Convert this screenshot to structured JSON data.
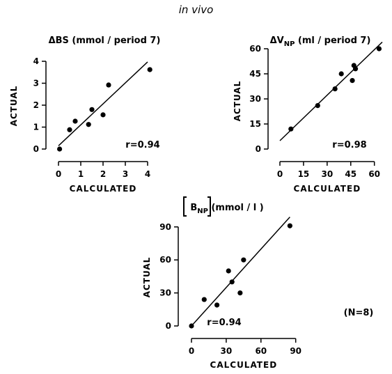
{
  "figure": {
    "header": "in vivo",
    "n_label": "(N=8)"
  },
  "chart_data": [
    {
      "type": "scatter",
      "title": "ΔBS (mmol/period 7)",
      "title_parts": {
        "main": "ΔBS (mmol / period 7)"
      },
      "xlabel": "CALCULATED",
      "ylabel": "ACTUAL",
      "xlim": [
        0,
        4.5
      ],
      "ylim": [
        0,
        4
      ],
      "xticks": [
        0,
        1,
        2,
        3,
        4
      ],
      "yticks": [
        0,
        1,
        2,
        3,
        4
      ],
      "points": [
        {
          "x": 0.05,
          "y": 0.0
        },
        {
          "x": 0.5,
          "y": 0.88
        },
        {
          "x": 0.75,
          "y": 1.27
        },
        {
          "x": 1.35,
          "y": 1.12
        },
        {
          "x": 1.5,
          "y": 1.8
        },
        {
          "x": 2.0,
          "y": 1.56
        },
        {
          "x": 2.25,
          "y": 2.92
        },
        {
          "x": 4.1,
          "y": 3.62
        }
      ],
      "regression": {
        "x": [
          0,
          4
        ],
        "y": [
          0.15,
          3.97
        ]
      },
      "annotation": "r=0.94"
    },
    {
      "type": "scatter",
      "title": "ΔVNP (ml/period 7)",
      "title_parts": {
        "prefix": "ΔV",
        "subscript": "NP",
        "suffix": " (ml / period 7)"
      },
      "xlabel": "CALCULATED",
      "ylabel": "ACTUAL",
      "xlim": [
        0,
        65
      ],
      "ylim": [
        0,
        65
      ],
      "xticks": [
        0,
        15,
        30,
        45,
        60
      ],
      "yticks": [
        0,
        15,
        30,
        45,
        60
      ],
      "points": [
        {
          "x": 7,
          "y": 12
        },
        {
          "x": 24,
          "y": 26
        },
        {
          "x": 35,
          "y": 36
        },
        {
          "x": 39,
          "y": 45
        },
        {
          "x": 46,
          "y": 41
        },
        {
          "x": 47,
          "y": 50
        },
        {
          "x": 48,
          "y": 48
        },
        {
          "x": 63,
          "y": 60
        }
      ],
      "regression": {
        "x": [
          0,
          65
        ],
        "y": [
          5,
          64
        ]
      },
      "annotation": "r=0.98"
    },
    {
      "type": "scatter",
      "title": "[BNP] (mmol/l)",
      "title_parts": {
        "prefix": "B",
        "subscript": "NP",
        "suffix": " (mmol / l )"
      },
      "xlabel": "CALCULATED",
      "ylabel": "ACTUAL",
      "xlim": [
        0,
        95
      ],
      "ylim": [
        0,
        100
      ],
      "xticks": [
        0,
        30,
        60,
        90
      ],
      "yticks": [
        0,
        30,
        60,
        90
      ],
      "points": [
        {
          "x": 0,
          "y": 0
        },
        {
          "x": 11,
          "y": 24
        },
        {
          "x": 22,
          "y": 19
        },
        {
          "x": 32,
          "y": 50
        },
        {
          "x": 35,
          "y": 40
        },
        {
          "x": 42,
          "y": 30
        },
        {
          "x": 45,
          "y": 60
        },
        {
          "x": 85,
          "y": 91
        }
      ],
      "regression": {
        "x": [
          0,
          85
        ],
        "y": [
          0,
          99
        ]
      },
      "annotation": "r=0.94"
    }
  ]
}
